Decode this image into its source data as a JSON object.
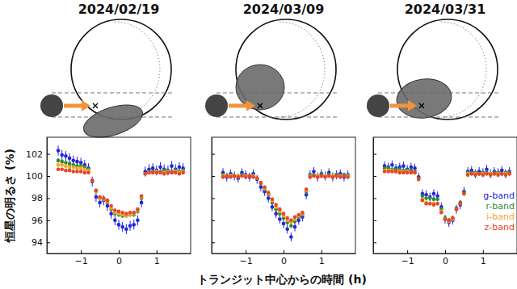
{
  "chart_data": [
    {
      "type": "scatter",
      "title": "2024/02/19",
      "y_label": "恒星の明るさ (%)",
      "x": [
        -1.6,
        -1.5,
        -1.4,
        -1.3,
        -1.2,
        -1.1,
        -1.0,
        -0.9,
        -0.8,
        -0.7,
        -0.6,
        -0.5,
        -0.4,
        -0.3,
        -0.2,
        -0.1,
        0.0,
        0.1,
        0.2,
        0.3,
        0.4,
        0.5,
        0.6,
        0.7,
        0.8,
        0.9,
        1.0,
        1.1,
        1.2,
        1.3,
        1.4,
        1.5,
        1.6,
        1.7
      ],
      "series": [
        {
          "name": "g-band",
          "color": "#2323e6",
          "error": 0.45,
          "values": [
            102.3,
            101.9,
            101.8,
            101.6,
            101.4,
            101.3,
            101.2,
            101.0,
            100.7,
            99.5,
            98.1,
            97.6,
            97.8,
            97.3,
            96.6,
            96.0,
            95.6,
            95.4,
            95.2,
            95.5,
            95.6,
            96.0,
            97.6,
            100.4,
            100.6,
            100.7,
            100.5,
            100.8,
            100.6,
            100.5,
            100.9,
            100.6,
            100.8,
            100.7
          ]
        },
        {
          "name": "r-band",
          "color": "#2e8b2e",
          "error": 0.2,
          "values": [
            101.4,
            101.3,
            101.2,
            101.1,
            101.0,
            100.9,
            100.9,
            100.8,
            100.6,
            99.6,
            98.6,
            98.0,
            97.9,
            97.6,
            97.0,
            96.6,
            96.5,
            96.4,
            96.4,
            96.5,
            96.5,
            96.8,
            98.0,
            100.2,
            100.4,
            100.4,
            100.4,
            100.4,
            100.5,
            100.4,
            100.4,
            100.5,
            100.4,
            100.5
          ]
        },
        {
          "name": "i-band",
          "color": "#f5a623",
          "error": 0.15,
          "values": [
            101.0,
            101.0,
            100.9,
            100.8,
            100.8,
            100.7,
            100.7,
            100.6,
            100.5,
            99.6,
            98.6,
            98.0,
            97.9,
            97.7,
            97.1,
            96.7,
            96.6,
            96.5,
            96.4,
            96.5,
            96.6,
            96.9,
            98.1,
            100.2,
            100.3,
            100.3,
            100.4,
            100.3,
            100.3,
            100.4,
            100.3,
            100.4,
            100.3,
            100.4
          ]
        },
        {
          "name": "z-band",
          "color": "#e8452c",
          "error": 0.15,
          "values": [
            100.6,
            100.6,
            100.5,
            100.5,
            100.4,
            100.4,
            100.4,
            100.3,
            100.3,
            99.6,
            98.7,
            98.1,
            98.0,
            97.8,
            97.3,
            96.9,
            96.8,
            96.7,
            96.6,
            96.7,
            96.7,
            97.0,
            98.2,
            100.2,
            100.3,
            100.3,
            100.3,
            100.3,
            100.2,
            100.3,
            100.3,
            100.3,
            100.2,
            100.3
          ]
        }
      ],
      "xlim": [
        -1.9,
        1.9
      ],
      "ylim": [
        93,
        103.5
      ],
      "xticks": [
        {
          "value": -1,
          "label": "−1"
        },
        0,
        1
      ],
      "yticks": [
        94,
        96,
        98,
        100,
        102
      ]
    },
    {
      "type": "scatter",
      "title": "2024/03/09",
      "x_label": "トランジット中心からの時間 (h)",
      "tick_labels": "x",
      "x": [
        -1.6,
        -1.5,
        -1.4,
        -1.3,
        -1.2,
        -1.1,
        -1.0,
        -0.9,
        -0.8,
        -0.7,
        -0.6,
        -0.5,
        -0.4,
        -0.3,
        -0.2,
        -0.1,
        0.0,
        0.1,
        0.2,
        0.3,
        0.4,
        0.5,
        0.6,
        0.7,
        0.8,
        0.9,
        1.0,
        1.1,
        1.2,
        1.3,
        1.4,
        1.5,
        1.6,
        1.7
      ],
      "series": [
        {
          "name": "g-band",
          "color": "#2323e6",
          "error": 0.4,
          "values": [
            100.3,
            99.9,
            100.2,
            100.0,
            99.8,
            100.3,
            100.1,
            99.9,
            100.2,
            99.7,
            99.0,
            98.6,
            98.0,
            97.2,
            96.6,
            96.1,
            95.7,
            95.2,
            94.5,
            95.4,
            96.0,
            96.3,
            98.3,
            100.1,
            100.4,
            99.9,
            100.2,
            100.0,
            100.3,
            99.9,
            100.1,
            100.2,
            99.9,
            100.1
          ]
        },
        {
          "name": "r-band",
          "color": "#2e8b2e",
          "error": 0.2,
          "values": [
            100.1,
            100.0,
            100.1,
            100.0,
            100.0,
            100.1,
            100.0,
            100.0,
            100.0,
            99.8,
            99.3,
            98.8,
            98.3,
            97.6,
            97.0,
            96.6,
            96.2,
            95.8,
            95.5,
            95.9,
            96.3,
            96.5,
            98.6,
            100.0,
            100.1,
            100.0,
            100.1,
            100.0,
            100.1,
            100.0,
            100.1,
            100.0,
            100.1,
            100.0
          ]
        },
        {
          "name": "i-band",
          "color": "#f5a623",
          "error": 0.15,
          "values": [
            100.0,
            100.0,
            100.0,
            100.0,
            100.0,
            100.0,
            100.0,
            100.0,
            100.0,
            99.8,
            99.4,
            98.9,
            98.4,
            97.8,
            97.2,
            96.8,
            96.4,
            96.0,
            95.8,
            96.1,
            96.4,
            96.6,
            98.7,
            100.0,
            100.0,
            100.0,
            100.0,
            100.0,
            100.0,
            100.0,
            100.0,
            100.0,
            100.0,
            100.0
          ]
        },
        {
          "name": "z-band",
          "color": "#e8452c",
          "error": 0.15,
          "values": [
            99.9,
            100.0,
            99.9,
            100.0,
            99.9,
            100.0,
            99.9,
            100.0,
            99.9,
            99.8,
            99.4,
            99.0,
            98.5,
            97.9,
            97.4,
            97.0,
            96.6,
            96.2,
            96.0,
            96.3,
            96.5,
            96.7,
            98.8,
            99.9,
            100.0,
            99.9,
            100.0,
            99.9,
            100.0,
            99.9,
            100.0,
            99.9,
            100.0,
            99.9
          ]
        }
      ],
      "xlim": [
        -1.9,
        1.9
      ],
      "ylim": [
        93,
        103.5
      ],
      "xticks": [
        {
          "value": -1,
          "label": "−1"
        },
        0,
        1
      ],
      "yticks": [
        94,
        96,
        98,
        100,
        102
      ]
    },
    {
      "type": "scatter",
      "title": "2024/03/31",
      "tick_labels": "x",
      "legend": "right",
      "x": [
        -1.6,
        -1.5,
        -1.4,
        -1.3,
        -1.2,
        -1.1,
        -1.0,
        -0.9,
        -0.8,
        -0.7,
        -0.6,
        -0.5,
        -0.4,
        -0.3,
        -0.2,
        -0.1,
        0.0,
        0.1,
        0.2,
        0.3,
        0.4,
        0.5,
        0.6,
        0.7,
        0.8,
        0.9,
        1.0,
        1.1,
        1.2,
        1.3,
        1.4,
        1.5,
        1.6,
        1.7
      ],
      "series": [
        {
          "name": "g-band",
          "color": "#2323e6",
          "error": 0.4,
          "values": [
            100.9,
            100.8,
            101.0,
            100.7,
            100.8,
            100.9,
            100.6,
            100.8,
            100.7,
            99.9,
            98.4,
            98.3,
            98.1,
            98.4,
            98.2,
            97.2,
            96.1,
            95.8,
            96.0,
            97.0,
            97.4,
            98.6,
            100.4,
            100.5,
            100.2,
            100.4,
            100.3,
            100.6,
            100.2,
            100.4,
            100.3,
            100.5,
            100.2,
            100.4
          ]
        },
        {
          "name": "r-band",
          "color": "#2e8b2e",
          "error": 0.2,
          "values": [
            100.7,
            100.7,
            100.6,
            100.6,
            100.6,
            100.5,
            100.5,
            100.5,
            100.4,
            99.8,
            98.2,
            98.0,
            98.0,
            97.9,
            97.9,
            97.0,
            96.2,
            96.0,
            96.2,
            97.1,
            97.6,
            98.5,
            100.3,
            100.3,
            100.3,
            100.2,
            100.3,
            100.3,
            100.2,
            100.3,
            100.3,
            100.2,
            100.3,
            100.3
          ]
        },
        {
          "name": "i-band",
          "color": "#f5a623",
          "error": 0.15,
          "values": [
            100.5,
            100.5,
            100.5,
            100.4,
            100.4,
            100.4,
            100.4,
            100.3,
            100.3,
            99.7,
            97.9,
            97.6,
            97.5,
            97.5,
            97.5,
            96.8,
            96.1,
            95.9,
            96.1,
            97.0,
            97.5,
            98.4,
            100.2,
            100.2,
            100.2,
            100.2,
            100.2,
            100.2,
            100.2,
            100.2,
            100.2,
            100.2,
            100.2,
            100.2
          ]
        },
        {
          "name": "z-band",
          "color": "#e8452c",
          "error": 0.15,
          "values": [
            100.4,
            100.4,
            100.4,
            100.4,
            100.3,
            100.3,
            100.3,
            100.3,
            100.3,
            99.7,
            97.8,
            97.5,
            97.5,
            97.4,
            97.5,
            96.7,
            96.1,
            96.0,
            96.2,
            97.0,
            97.5,
            98.4,
            100.1,
            100.2,
            100.1,
            100.2,
            100.1,
            100.2,
            100.1,
            100.2,
            100.1,
            100.2,
            100.1,
            100.2
          ]
        }
      ],
      "xlim": [
        -1.9,
        1.9
      ],
      "ylim": [
        93,
        103.5
      ],
      "xticks": [
        {
          "value": -1,
          "label": "−1"
        },
        0,
        1
      ],
      "yticks": [
        94,
        96,
        98,
        100,
        102
      ]
    }
  ]
}
